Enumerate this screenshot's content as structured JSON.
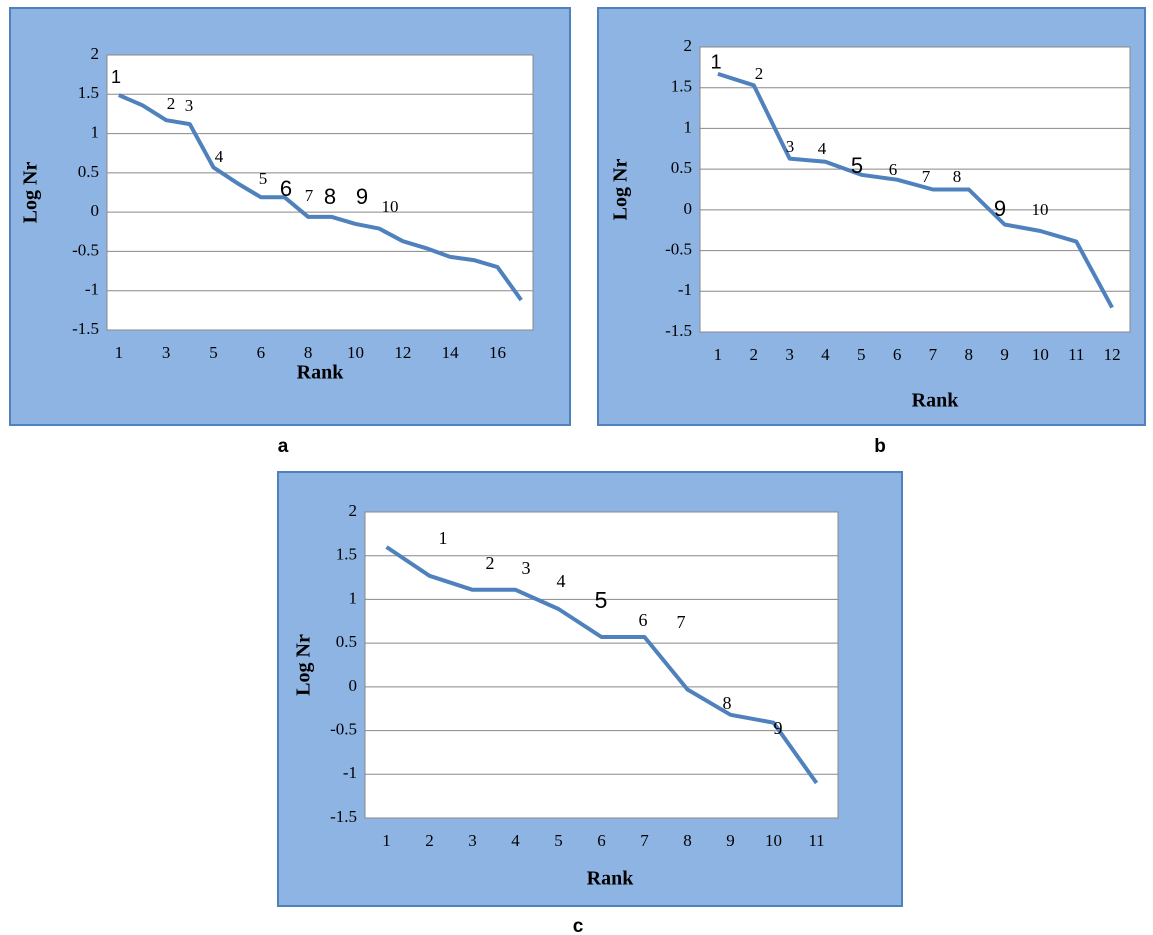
{
  "chart_data": [
    {
      "type": "line",
      "caption": "a",
      "x_label": "Rank",
      "y_label": "Log Nr",
      "color": "#4f81bd",
      "grid": true,
      "categories": [
        "1",
        null,
        "3",
        null,
        "5",
        null,
        "6",
        null,
        "8",
        null,
        "10",
        null,
        "12",
        null,
        "14",
        null,
        "16",
        null
      ],
      "values": [
        1.49,
        1.36,
        1.17,
        1.12,
        0.57,
        0.37,
        0.19,
        0.19,
        -0.06,
        -0.06,
        -0.15,
        -0.21,
        -0.37,
        -0.46,
        -0.57,
        -0.61,
        -0.7,
        -1.12
      ],
      "ylim": [
        -1.5,
        2
      ],
      "yticks": [
        -1.5,
        -1,
        -0.5,
        0,
        0.5,
        1,
        1.5,
        2
      ],
      "annotations": [
        "1",
        "2",
        "3",
        "4",
        "5",
        "6",
        "7",
        "8",
        "9",
        "10"
      ]
    },
    {
      "type": "line",
      "caption": "b",
      "x_label": "Rank",
      "y_label": "Log Nr",
      "color": "#4f81bd",
      "grid": true,
      "categories": [
        "1",
        "2",
        "3",
        "4",
        "5",
        "6",
        "7",
        "8",
        "9",
        "10",
        "11",
        "12"
      ],
      "values": [
        1.67,
        1.53,
        0.63,
        0.59,
        0.43,
        0.37,
        0.25,
        0.25,
        -0.18,
        -0.26,
        -0.39,
        -1.2
      ],
      "ylim": [
        -1.5,
        2
      ],
      "yticks": [
        -1.5,
        -1,
        -0.5,
        0,
        0.5,
        1,
        1.5,
        2
      ],
      "annotations": [
        "1",
        "2",
        "3",
        "4",
        "5",
        "6",
        "7",
        "8",
        "9",
        "10"
      ]
    },
    {
      "type": "line",
      "caption": "c",
      "x_label": "Rank",
      "y_label": "Log Nr",
      "color": "#4f81bd",
      "grid": true,
      "categories": [
        "1",
        "2",
        "3",
        "4",
        "5",
        "6",
        "7",
        "8",
        "9",
        "10",
        "11"
      ],
      "values": [
        1.6,
        1.27,
        1.11,
        1.11,
        0.89,
        0.57,
        0.57,
        -0.03,
        -0.32,
        -0.41,
        -1.1
      ],
      "ylim": [
        -1.5,
        2
      ],
      "yticks": [
        -1.5,
        -1,
        -0.5,
        0,
        0.5,
        1,
        1.5,
        2
      ],
      "annotations": [
        "1",
        "2",
        "3",
        "4",
        "5",
        "6",
        "7",
        "8",
        "9"
      ]
    }
  ]
}
